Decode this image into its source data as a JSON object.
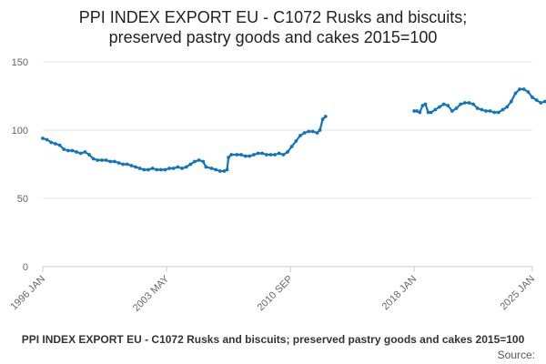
{
  "chart_data": {
    "type": "line",
    "title_line1": "PPI INDEX EXPORT EU - C1072 Rusks and biscuits;",
    "title_line2": "preserved pastry goods and cakes 2015=100",
    "footer_title": "PPI INDEX EXPORT EU - C1072 Rusks and biscuits; preserved pastry goods and cakes 2015=100",
    "source_label": "Source:",
    "xlabel": "",
    "ylabel": "",
    "ylim": [
      0,
      150
    ],
    "xlim": [
      "1996-01",
      "2025-01"
    ],
    "y_ticks": [
      0,
      50,
      100,
      150
    ],
    "x_ticks": [
      "1996 JAN",
      "2003 MAY",
      "2010 SEP",
      "2018 JAN",
      "2025 JAN"
    ],
    "grid": true,
    "legend": "none",
    "series_color": "#0f75bc",
    "series": [
      {
        "segments": [
          [
            [
              "1996-01",
              94
            ],
            [
              "1996-04",
              93
            ],
            [
              "1996-07",
              91
            ],
            [
              "1996-10",
              90
            ],
            [
              "1997-01",
              89
            ],
            [
              "1997-04",
              86
            ],
            [
              "1997-07",
              85
            ],
            [
              "1997-10",
              85
            ],
            [
              "1998-01",
              84
            ],
            [
              "1998-04",
              83
            ],
            [
              "1998-07",
              84
            ],
            [
              "1998-10",
              82
            ],
            [
              "1999-01",
              79
            ],
            [
              "1999-04",
              78
            ],
            [
              "1999-07",
              78
            ],
            [
              "1999-10",
              78
            ],
            [
              "2000-01",
              77
            ],
            [
              "2000-04",
              77
            ],
            [
              "2000-07",
              76
            ],
            [
              "2000-10",
              75
            ],
            [
              "2001-01",
              75
            ],
            [
              "2001-04",
              74
            ],
            [
              "2001-07",
              73
            ],
            [
              "2001-10",
              72
            ],
            [
              "2002-01",
              71
            ],
            [
              "2002-04",
              71
            ],
            [
              "2002-07",
              72
            ],
            [
              "2002-10",
              71
            ],
            [
              "2003-01",
              71
            ],
            [
              "2003-04",
              71
            ],
            [
              "2003-07",
              72
            ],
            [
              "2003-10",
              72
            ],
            [
              "2004-01",
              73
            ],
            [
              "2004-04",
              72
            ],
            [
              "2004-07",
              73
            ],
            [
              "2004-10",
              75
            ],
            [
              "2005-01",
              77
            ],
            [
              "2005-04",
              78
            ],
            [
              "2005-07",
              77
            ],
            [
              "2005-09",
              73
            ],
            [
              "2006-01",
              72
            ],
            [
              "2006-04",
              71
            ],
            [
              "2006-07",
              70
            ],
            [
              "2006-10",
              70
            ],
            [
              "2006-12",
              71
            ],
            [
              "2007-01",
              80
            ],
            [
              "2007-03",
              82
            ],
            [
              "2007-07",
              82
            ],
            [
              "2007-10",
              82
            ],
            [
              "2008-01",
              81
            ],
            [
              "2008-04",
              81
            ],
            [
              "2008-07",
              82
            ],
            [
              "2008-10",
              83
            ],
            [
              "2009-01",
              83
            ],
            [
              "2009-04",
              82
            ],
            [
              "2009-07",
              82
            ],
            [
              "2009-10",
              82
            ],
            [
              "2010-01",
              83
            ],
            [
              "2010-04",
              82
            ],
            [
              "2010-07",
              84
            ],
            [
              "2010-10",
              88
            ],
            [
              "2011-01",
              92
            ],
            [
              "2011-04",
              96
            ],
            [
              "2011-07",
              98
            ],
            [
              "2011-10",
              99
            ],
            [
              "2012-01",
              99
            ],
            [
              "2012-04",
              98
            ],
            [
              "2012-06",
              100
            ],
            [
              "2012-08",
              108
            ],
            [
              "2012-10",
              110
            ]
          ],
          [
            [
              "2018-01",
              114
            ],
            [
              "2018-03",
              114
            ],
            [
              "2018-05",
              113
            ],
            [
              "2018-07",
              118
            ],
            [
              "2018-09",
              119
            ],
            [
              "2018-11",
              113
            ],
            [
              "2019-01",
              113
            ],
            [
              "2019-04",
              115
            ],
            [
              "2019-07",
              117
            ],
            [
              "2019-10",
              119
            ],
            [
              "2020-01",
              118
            ],
            [
              "2020-04",
              114
            ],
            [
              "2020-07",
              116
            ],
            [
              "2020-10",
              119
            ],
            [
              "2021-01",
              120
            ],
            [
              "2021-04",
              120
            ],
            [
              "2021-07",
              119
            ],
            [
              "2021-10",
              116
            ],
            [
              "2022-01",
              115
            ],
            [
              "2022-04",
              114
            ],
            [
              "2022-07",
              114
            ],
            [
              "2022-10",
              113
            ],
            [
              "2023-01",
              113
            ],
            [
              "2023-04",
              115
            ],
            [
              "2023-07",
              117
            ],
            [
              "2023-10",
              121
            ],
            [
              "2024-01",
              127
            ],
            [
              "2024-04",
              130
            ],
            [
              "2024-07",
              130
            ],
            [
              "2024-10",
              128
            ],
            [
              "2025-01",
              124
            ],
            [
              "2025-04",
              122
            ],
            [
              "2025-07",
              120
            ],
            [
              "2025-10",
              121
            ]
          ]
        ]
      }
    ]
  }
}
